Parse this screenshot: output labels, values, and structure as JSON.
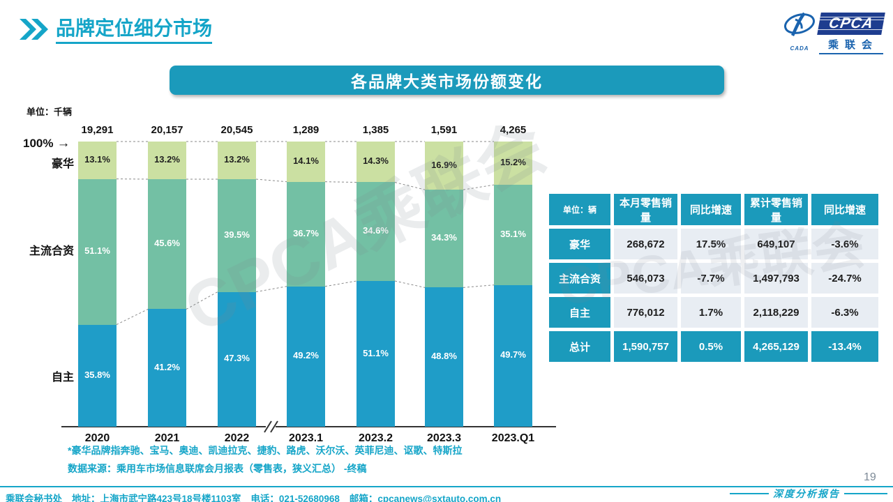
{
  "header": {
    "title": "品牌定位细分市场"
  },
  "logo": {
    "acronym": "CPCA",
    "sub_text": "CADA",
    "name_cn": "乘联会"
  },
  "banner": {
    "title": "各品牌大类市场份额变化"
  },
  "icons": {
    "arrow_right": "→"
  },
  "side_labels": {
    "luxury": "豪华",
    "jv": "主流合资",
    "domestic": "自主"
  },
  "chart_data": {
    "type": "bar",
    "stacked": true,
    "title": "各品牌大类市场份额变化",
    "unit_label": "单位：千辆",
    "axis_100_label": "100%",
    "ylim": [
      0,
      100
    ],
    "grid": false,
    "axis_break_after": "2022",
    "categories": [
      "2020",
      "2021",
      "2022",
      "2023.1",
      "2023.2",
      "2023.3",
      "2023.Q1"
    ],
    "totals": [
      "19,291",
      "20,157",
      "20,545",
      "1,289",
      "1,385",
      "1,591",
      "4,265"
    ],
    "series": [
      {
        "name": "自主",
        "color": "#1f9dc8",
        "label_color": "#ffffff",
        "values": [
          35.8,
          41.2,
          47.3,
          49.2,
          51.1,
          48.8,
          49.7
        ]
      },
      {
        "name": "主流合资",
        "color": "#73c0a4",
        "label_color": "#ffffff",
        "values": [
          51.1,
          45.6,
          39.5,
          36.7,
          34.6,
          34.3,
          35.1
        ]
      },
      {
        "name": "豪华",
        "color": "#cbe0a2",
        "label_color": "#1f1f1f",
        "values": [
          13.1,
          13.2,
          13.2,
          14.1,
          14.3,
          16.9,
          15.2
        ]
      }
    ]
  },
  "table": {
    "headers": [
      "单位：辆",
      "本月零售销量",
      "同比增速",
      "累计零售销量",
      "同比增速"
    ],
    "rows": [
      {
        "label": "豪华",
        "cells": [
          "268,672",
          "17.5%",
          "649,107",
          "-3.6%"
        ]
      },
      {
        "label": "主流合资",
        "cells": [
          "546,073",
          "-7.7%",
          "1,497,793",
          "-24.7%"
        ]
      },
      {
        "label": "自主",
        "cells": [
          "776,012",
          "1.7%",
          "2,118,229",
          "-6.3%"
        ]
      },
      {
        "label": "总计",
        "cells": [
          "1,590,757",
          "0.5%",
          "4,265,129",
          "-13.4%"
        ]
      }
    ]
  },
  "footnotes": {
    "note1": "*豪华品牌指奔驰、宝马、奥迪、凯迪拉克、捷豹、路虎、沃尔沃、英菲尼迪、讴歌、特斯拉",
    "note2": "数据来源：乘用车市场信息联席会月报表（零售表，狭义汇总） -终稿"
  },
  "footer": {
    "secretariat": "乘联会秘书处",
    "address": "地址：上海市武宁路423号18号楼1103室",
    "phone": "电话：021-52680968",
    "email": "邮箱：cpcanews@sxtauto.com.cn",
    "report_label": "深度分析报告",
    "page_number": "19"
  },
  "watermark": "CPCA乘联会",
  "colors": {
    "accent": "#15a5c8",
    "teal": "#1b9abb",
    "cell_bg": "#e8edf3",
    "page_number_gray": "#7d8a97",
    "logo_navy": "#1e3d8f",
    "logo_blue": "#1a63ae",
    "connector_gray": "#8a8a8a",
    "axis_black": "#333333"
  }
}
